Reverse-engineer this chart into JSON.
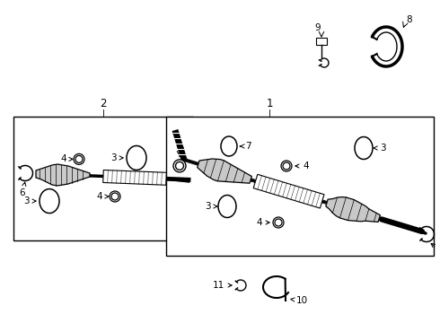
{
  "bg_color": "#ffffff",
  "line_color": "#000000",
  "fig_width": 4.9,
  "fig_height": 3.6,
  "dpi": 100,
  "label_fontsize": 7.5
}
